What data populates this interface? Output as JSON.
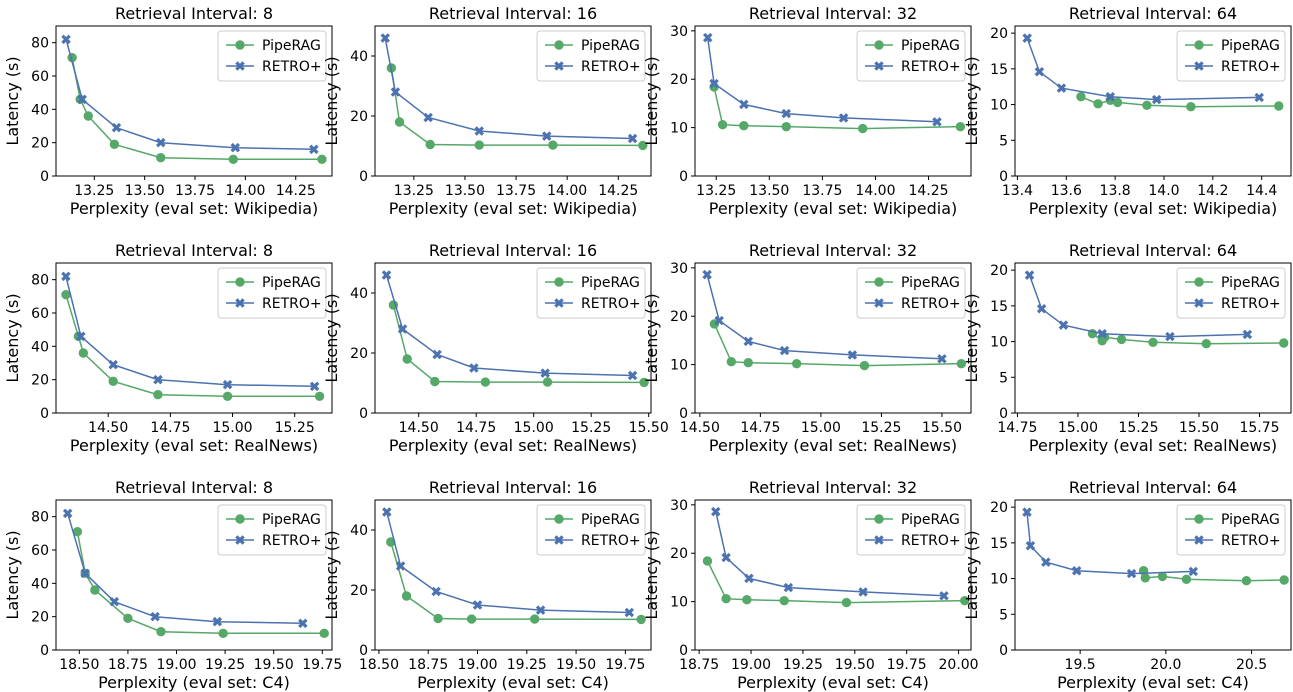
{
  "colors": {
    "pipe": "#55a868",
    "retro": "#4c72b0",
    "legend_border": "#cccccc",
    "axis": "#000000"
  },
  "chart_data": [
    {
      "type": "line",
      "title": "Retrieval Interval: 8",
      "xlabel": "Perplexity (eval set: Wikipedia)",
      "ylabel": "Latency (s)",
      "xlim": [
        13.06,
        14.43
      ],
      "ylim": [
        0,
        90
      ],
      "xticks": [
        13.25,
        13.5,
        13.75,
        14.0,
        14.25
      ],
      "xtick_labels": [
        "13.25",
        "13.50",
        "13.75",
        "14.00",
        "14.25"
      ],
      "yticks": [
        0,
        20,
        40,
        60,
        80
      ],
      "ytick_labels": [
        "0",
        "20",
        "40",
        "60",
        "80"
      ],
      "legend": "top-right",
      "series": [
        {
          "name": "PipeRAG",
          "color": "#55a868",
          "marker": "circle",
          "x": [
            13.14,
            13.18,
            13.22,
            13.35,
            13.58,
            13.94,
            14.38
          ],
          "y": [
            71,
            46,
            36,
            19,
            11,
            10,
            10
          ]
        },
        {
          "name": "RETRO+",
          "color": "#4c72b0",
          "marker": "x",
          "x": [
            13.11,
            13.19,
            13.36,
            13.58,
            13.95,
            14.34
          ],
          "y": [
            82,
            46,
            29,
            20,
            17,
            16
          ]
        }
      ]
    },
    {
      "type": "line",
      "title": "Retrieval Interval: 16",
      "xlabel": "Perplexity (eval set: Wikipedia)",
      "ylabel": "Latency (s)",
      "xlim": [
        13.06,
        14.41
      ],
      "ylim": [
        0,
        50
      ],
      "xticks": [
        13.25,
        13.5,
        13.75,
        14.0,
        14.25
      ],
      "xtick_labels": [
        "13.25",
        "13.50",
        "13.75",
        "14.00",
        "14.25"
      ],
      "yticks": [
        0,
        20,
        40
      ],
      "ytick_labels": [
        "0",
        "20",
        "40"
      ],
      "legend": "top-right",
      "series": [
        {
          "name": "PipeRAG",
          "color": "#55a868",
          "marker": "circle",
          "x": [
            13.14,
            13.18,
            13.33,
            13.57,
            13.93,
            14.37
          ],
          "y": [
            36,
            18,
            10.5,
            10.3,
            10.3,
            10.2
          ]
        },
        {
          "name": "RETRO+",
          "color": "#4c72b0",
          "marker": "x",
          "x": [
            13.11,
            13.16,
            13.32,
            13.57,
            13.9,
            14.32
          ],
          "y": [
            46,
            28,
            19.5,
            15,
            13.3,
            12.5
          ]
        }
      ]
    },
    {
      "type": "line",
      "title": "Retrieval Interval: 32",
      "xlabel": "Perplexity (eval set: Wikipedia)",
      "ylabel": "Latency (s)",
      "xlim": [
        13.15,
        14.45
      ],
      "ylim": [
        0,
        31
      ],
      "xticks": [
        13.25,
        13.5,
        13.75,
        14.0,
        14.25
      ],
      "xtick_labels": [
        "13.25",
        "13.50",
        "13.75",
        "14.00",
        "14.25"
      ],
      "yticks": [
        0,
        10,
        20,
        30
      ],
      "ytick_labels": [
        "0",
        "10",
        "20",
        "30"
      ],
      "legend": "top-right",
      "series": [
        {
          "name": "PipeRAG",
          "color": "#55a868",
          "marker": "circle",
          "x": [
            13.24,
            13.28,
            13.38,
            13.58,
            13.94,
            14.4
          ],
          "y": [
            18.4,
            10.6,
            10.4,
            10.2,
            9.8,
            10.2
          ]
        },
        {
          "name": "RETRO+",
          "color": "#4c72b0",
          "marker": "x",
          "x": [
            13.21,
            13.24,
            13.38,
            13.58,
            13.85,
            14.29
          ],
          "y": [
            28.6,
            19.1,
            14.8,
            12.9,
            12.0,
            11.2
          ]
        }
      ]
    },
    {
      "type": "line",
      "title": "Retrieval Interval: 64",
      "xlabel": "Perplexity (eval set: Wikipedia)",
      "ylabel": "Latency (s)",
      "xlim": [
        13.39,
        14.52
      ],
      "ylim": [
        0,
        21
      ],
      "xticks": [
        13.4,
        13.6,
        13.8,
        14.0,
        14.2,
        14.4
      ],
      "xtick_labels": [
        "13.4",
        "13.6",
        "13.8",
        "14.0",
        "14.2",
        "14.4"
      ],
      "yticks": [
        0,
        5,
        10,
        15,
        20
      ],
      "ytick_labels": [
        "0",
        "5",
        "10",
        "15",
        "20"
      ],
      "legend": "top-right",
      "series": [
        {
          "name": "PipeRAG",
          "color": "#55a868",
          "marker": "circle",
          "x": [
            13.66,
            13.73,
            13.78,
            13.81,
            13.93,
            14.11,
            14.47
          ],
          "y": [
            11.1,
            10.1,
            10.6,
            10.3,
            9.9,
            9.7,
            9.8
          ]
        },
        {
          "name": "RETRO+",
          "color": "#4c72b0",
          "marker": "x",
          "x": [
            13.44,
            13.49,
            13.58,
            13.78,
            13.97,
            14.39
          ],
          "y": [
            19.3,
            14.6,
            12.3,
            11.1,
            10.7,
            11.0
          ]
        }
      ]
    },
    {
      "type": "line",
      "title": "Retrieval Interval: 8",
      "xlabel": "Perplexity (eval set: RealNews)",
      "ylabel": "Latency (s)",
      "xlim": [
        14.29,
        15.4
      ],
      "ylim": [
        0,
        90
      ],
      "xticks": [
        14.5,
        14.75,
        15.0,
        15.25
      ],
      "xtick_labels": [
        "14.50",
        "14.75",
        "15.00",
        "15.25"
      ],
      "yticks": [
        0,
        20,
        40,
        60,
        80
      ],
      "ytick_labels": [
        "0",
        "20",
        "40",
        "60",
        "80"
      ],
      "legend": "top-right",
      "series": [
        {
          "name": "PipeRAG",
          "color": "#55a868",
          "marker": "circle",
          "x": [
            14.33,
            14.38,
            14.4,
            14.52,
            14.7,
            14.98,
            15.35
          ],
          "y": [
            71,
            46,
            36,
            19,
            11,
            10,
            10
          ]
        },
        {
          "name": "RETRO+",
          "color": "#4c72b0",
          "marker": "x",
          "x": [
            14.33,
            14.39,
            14.52,
            14.7,
            14.98,
            15.33
          ],
          "y": [
            82,
            46,
            29,
            20,
            17,
            16
          ]
        }
      ]
    },
    {
      "type": "line",
      "title": "Retrieval Interval: 16",
      "xlabel": "Perplexity (eval set: RealNews)",
      "ylabel": "Latency (s)",
      "xlim": [
        14.31,
        15.51
      ],
      "ylim": [
        0,
        50
      ],
      "xticks": [
        14.5,
        14.75,
        15.0,
        15.25,
        15.5
      ],
      "xtick_labels": [
        "14.50",
        "14.75",
        "15.00",
        "15.25",
        "15.50"
      ],
      "yticks": [
        0,
        20,
        40
      ],
      "ytick_labels": [
        "0",
        "20",
        "40"
      ],
      "legend": "top-right",
      "series": [
        {
          "name": "PipeRAG",
          "color": "#55a868",
          "marker": "circle",
          "x": [
            14.39,
            14.45,
            14.57,
            14.79,
            15.06,
            15.48
          ],
          "y": [
            36,
            18,
            10.5,
            10.3,
            10.3,
            10.2
          ]
        },
        {
          "name": "RETRO+",
          "color": "#4c72b0",
          "marker": "x",
          "x": [
            14.36,
            14.43,
            14.58,
            14.74,
            15.05,
            15.43
          ],
          "y": [
            46,
            28,
            19.5,
            15,
            13.3,
            12.5
          ]
        }
      ]
    },
    {
      "type": "line",
      "title": "Retrieval Interval: 32",
      "xlabel": "Perplexity (eval set: RealNews)",
      "ylabel": "Latency (s)",
      "xlim": [
        14.48,
        15.62
      ],
      "ylim": [
        0,
        31
      ],
      "xticks": [
        14.5,
        14.75,
        15.0,
        15.25,
        15.5
      ],
      "xtick_labels": [
        "14.50",
        "14.75",
        "15.00",
        "15.25",
        "15.50"
      ],
      "yticks": [
        0,
        10,
        20,
        30
      ],
      "ytick_labels": [
        "0",
        "10",
        "20",
        "30"
      ],
      "legend": "top-right",
      "series": [
        {
          "name": "PipeRAG",
          "color": "#55a868",
          "marker": "circle",
          "x": [
            14.56,
            14.63,
            14.7,
            14.9,
            15.18,
            15.58
          ],
          "y": [
            18.4,
            10.6,
            10.4,
            10.2,
            9.8,
            10.2
          ]
        },
        {
          "name": "RETRO+",
          "color": "#4c72b0",
          "marker": "x",
          "x": [
            14.53,
            14.58,
            14.7,
            14.85,
            15.13,
            15.5
          ],
          "y": [
            28.6,
            19.1,
            14.8,
            12.9,
            12.0,
            11.2
          ]
        }
      ]
    },
    {
      "type": "line",
      "title": "Retrieval Interval: 64",
      "xlabel": "Perplexity (eval set: RealNews)",
      "ylabel": "Latency (s)",
      "xlim": [
        14.74,
        15.88
      ],
      "ylim": [
        0,
        21
      ],
      "xticks": [
        14.75,
        15.0,
        15.25,
        15.5,
        15.75
      ],
      "xtick_labels": [
        "14.75",
        "15.00",
        "15.25",
        "15.50",
        "15.75"
      ],
      "yticks": [
        0,
        5,
        10,
        15,
        20
      ],
      "ytick_labels": [
        "0",
        "5",
        "10",
        "15",
        "20"
      ],
      "legend": "top-right",
      "series": [
        {
          "name": "PipeRAG",
          "color": "#55a868",
          "marker": "circle",
          "x": [
            15.06,
            15.1,
            15.11,
            15.18,
            15.31,
            15.53,
            15.85
          ],
          "y": [
            11.1,
            10.1,
            10.6,
            10.3,
            9.9,
            9.7,
            9.8
          ]
        },
        {
          "name": "RETRO+",
          "color": "#4c72b0",
          "marker": "x",
          "x": [
            14.8,
            14.85,
            14.94,
            15.1,
            15.38,
            15.7
          ],
          "y": [
            19.3,
            14.6,
            12.3,
            11.1,
            10.7,
            11.0
          ]
        }
      ]
    },
    {
      "type": "line",
      "title": "Retrieval Interval: 8",
      "xlabel": "Perplexity (eval set: C4)",
      "ylabel": "Latency (s)",
      "xlim": [
        18.38,
        19.8
      ],
      "ylim": [
        0,
        90
      ],
      "xticks": [
        18.5,
        18.75,
        19.0,
        19.25,
        19.5,
        19.75
      ],
      "xtick_labels": [
        "18.50",
        "18.75",
        "19.00",
        "19.25",
        "19.50",
        "19.75"
      ],
      "yticks": [
        0,
        20,
        40,
        60,
        80
      ],
      "ytick_labels": [
        "0",
        "20",
        "40",
        "60",
        "80"
      ],
      "legend": "top-right",
      "series": [
        {
          "name": "PipeRAG",
          "color": "#55a868",
          "marker": "circle",
          "x": [
            18.49,
            18.53,
            18.58,
            18.75,
            18.92,
            19.24,
            19.76
          ],
          "y": [
            71,
            46,
            36,
            19,
            11,
            10,
            10
          ]
        },
        {
          "name": "RETRO+",
          "color": "#4c72b0",
          "marker": "x",
          "x": [
            18.44,
            18.53,
            18.68,
            18.89,
            19.21,
            19.65
          ],
          "y": [
            82,
            46,
            29,
            20,
            17,
            16
          ]
        }
      ]
    },
    {
      "type": "line",
      "title": "Retrieval Interval: 16",
      "xlabel": "Perplexity (eval set: C4)",
      "ylabel": "Latency (s)",
      "xlim": [
        18.48,
        19.88
      ],
      "ylim": [
        0,
        50
      ],
      "xticks": [
        18.5,
        18.75,
        19.0,
        19.25,
        19.5,
        19.75
      ],
      "xtick_labels": [
        "18.50",
        "18.75",
        "19.00",
        "19.25",
        "19.50",
        "19.75"
      ],
      "yticks": [
        0,
        20,
        40
      ],
      "ytick_labels": [
        "0",
        "20",
        "40"
      ],
      "legend": "top-right",
      "series": [
        {
          "name": "PipeRAG",
          "color": "#55a868",
          "marker": "circle",
          "x": [
            18.56,
            18.64,
            18.8,
            18.97,
            19.29,
            19.83
          ],
          "y": [
            36,
            18,
            10.5,
            10.3,
            10.3,
            10.2
          ]
        },
        {
          "name": "RETRO+",
          "color": "#4c72b0",
          "marker": "x",
          "x": [
            18.54,
            18.61,
            18.79,
            19.0,
            19.32,
            19.77
          ],
          "y": [
            46,
            28,
            19.5,
            15,
            13.3,
            12.5
          ]
        }
      ]
    },
    {
      "type": "line",
      "title": "Retrieval Interval: 32",
      "xlabel": "Perplexity (eval set: C4)",
      "ylabel": "Latency (s)",
      "xlim": [
        18.73,
        20.06
      ],
      "ylim": [
        0,
        31
      ],
      "xticks": [
        18.75,
        19.0,
        19.25,
        19.5,
        19.75,
        20.0
      ],
      "xtick_labels": [
        "18.75",
        "19.00",
        "19.25",
        "19.50",
        "19.75",
        "20.00"
      ],
      "yticks": [
        0,
        10,
        20,
        30
      ],
      "ytick_labels": [
        "0",
        "10",
        "20",
        "30"
      ],
      "legend": "top-right",
      "series": [
        {
          "name": "PipeRAG",
          "color": "#55a868",
          "marker": "circle",
          "x": [
            18.79,
            18.88,
            18.98,
            19.16,
            19.46,
            20.03
          ],
          "y": [
            18.4,
            10.6,
            10.4,
            10.2,
            9.8,
            10.2
          ]
        },
        {
          "name": "RETRO+",
          "color": "#4c72b0",
          "marker": "x",
          "x": [
            18.83,
            18.88,
            18.99,
            19.18,
            19.54,
            19.93
          ],
          "y": [
            28.6,
            19.1,
            14.8,
            12.9,
            12.0,
            11.2
          ]
        }
      ]
    },
    {
      "type": "line",
      "title": "Retrieval Interval: 64",
      "xlabel": "Perplexity (eval set: C4)",
      "ylabel": "Latency (s)",
      "xlim": [
        19.12,
        20.73
      ],
      "ylim": [
        0,
        21
      ],
      "xticks": [
        19.5,
        20.0,
        20.5
      ],
      "xtick_labels": [
        "19.5",
        "20.0",
        "20.5"
      ],
      "yticks": [
        0,
        5,
        10,
        15,
        20
      ],
      "ytick_labels": [
        "0",
        "5",
        "10",
        "15",
        "20"
      ],
      "legend": "top-right",
      "series": [
        {
          "name": "PipeRAG",
          "color": "#55a868",
          "marker": "circle",
          "x": [
            19.87,
            19.88,
            19.98,
            20.12,
            20.47,
            20.69
          ],
          "y": [
            11.1,
            10.1,
            10.3,
            9.9,
            9.7,
            9.8
          ]
        },
        {
          "name": "RETRO+",
          "color": "#4c72b0",
          "marker": "x",
          "x": [
            19.19,
            19.21,
            19.3,
            19.48,
            19.8,
            20.16
          ],
          "y": [
            19.3,
            14.6,
            12.3,
            11.1,
            10.7,
            11.0
          ]
        }
      ]
    }
  ]
}
